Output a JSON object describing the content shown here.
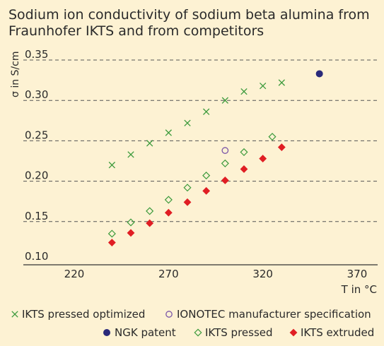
{
  "chart_data": {
    "type": "scatter",
    "title_lines": [
      "Sodium ion conductivity of sodium beta alumina from",
      "Fraunhofer IKTS and from competitors"
    ],
    "xlabel": "T in °C",
    "ylabel": "σ in S/cm",
    "xlim": [
      220,
      380
    ],
    "ylim": [
      0.1,
      0.35
    ],
    "x_ticks": [
      220,
      270,
      320,
      370
    ],
    "x_tick_labels": [
      "220",
      "270",
      "320",
      "370"
    ],
    "y_ticks": [
      0.1,
      0.15,
      0.2,
      0.25,
      0.3,
      0.35
    ],
    "y_tick_labels": [
      "0.10",
      "0.15",
      "0.20",
      "0.25",
      "0.30",
      "0.35"
    ],
    "grid": "horizontal dashed",
    "legend_position": "bottom",
    "series": [
      {
        "name": "IKTS pressed optimized",
        "marker": "x",
        "color": "#3c9a3c",
        "points": [
          {
            "x": 240,
            "y": 0.22
          },
          {
            "x": 250,
            "y": 0.233
          },
          {
            "x": 260,
            "y": 0.247
          },
          {
            "x": 270,
            "y": 0.26
          },
          {
            "x": 280,
            "y": 0.272
          },
          {
            "x": 290,
            "y": 0.286
          },
          {
            "x": 300,
            "y": 0.3
          },
          {
            "x": 310,
            "y": 0.311
          },
          {
            "x": 320,
            "y": 0.318
          },
          {
            "x": 330,
            "y": 0.322
          }
        ]
      },
      {
        "name": "IONOTEC manufacturer specification",
        "marker": "circle-open",
        "color": "#7a55a8",
        "points": [
          {
            "x": 300,
            "y": 0.238
          }
        ]
      },
      {
        "name": "NGK patent",
        "marker": "circle-filled",
        "color": "#2a2a7a",
        "points": [
          {
            "x": 350,
            "y": 0.333
          }
        ]
      },
      {
        "name": "IKTS pressed",
        "marker": "diamond-open",
        "color": "#3c9a3c",
        "points": [
          {
            "x": 240,
            "y": 0.135
          },
          {
            "x": 250,
            "y": 0.149
          },
          {
            "x": 260,
            "y": 0.163
          },
          {
            "x": 270,
            "y": 0.177
          },
          {
            "x": 280,
            "y": 0.192
          },
          {
            "x": 290,
            "y": 0.207
          },
          {
            "x": 300,
            "y": 0.222
          },
          {
            "x": 310,
            "y": 0.236
          },
          {
            "x": 325,
            "y": 0.255
          }
        ]
      },
      {
        "name": "IKTS extruded",
        "marker": "diamond-filled",
        "color": "#e01e24",
        "points": [
          {
            "x": 240,
            "y": 0.124
          },
          {
            "x": 250,
            "y": 0.136
          },
          {
            "x": 260,
            "y": 0.148
          },
          {
            "x": 270,
            "y": 0.161
          },
          {
            "x": 280,
            "y": 0.174
          },
          {
            "x": 290,
            "y": 0.188
          },
          {
            "x": 300,
            "y": 0.201
          },
          {
            "x": 310,
            "y": 0.215
          },
          {
            "x": 320,
            "y": 0.228
          },
          {
            "x": 330,
            "y": 0.242
          }
        ]
      }
    ],
    "legend_rows": [
      [
        0,
        1
      ],
      [
        2,
        3,
        4
      ]
    ]
  },
  "colors": {
    "background": "#fdf2d3",
    "text": "#2a2a2a",
    "grid": "#555555",
    "axis": "#333333"
  }
}
